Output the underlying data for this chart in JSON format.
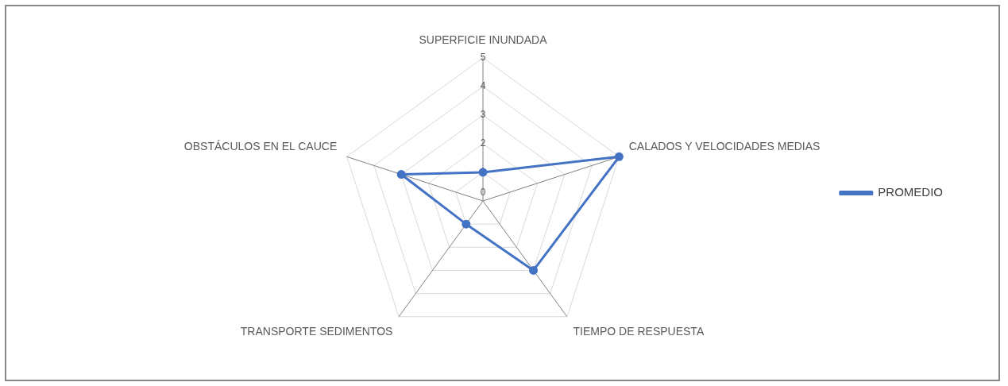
{
  "chart_data": {
    "type": "radar",
    "categories": [
      "SUPERFICIE INUNDADA",
      "CALADOS Y VELOCIDADES MEDIAS",
      "TIEMPO DE RESPUESTA",
      "TRANSPORTE SEDIMENTOS",
      "OBSTÁCULOS EN EL CAUCE"
    ],
    "series": [
      {
        "name": "PROMEDIO",
        "color": "#4472c4",
        "values": [
          1,
          5,
          3,
          1,
          3
        ]
      }
    ],
    "ylim": [
      0,
      5
    ],
    "yticks": [
      0,
      1,
      2,
      3,
      4,
      5
    ],
    "grid": true,
    "legend": "right",
    "marker": "circle"
  }
}
